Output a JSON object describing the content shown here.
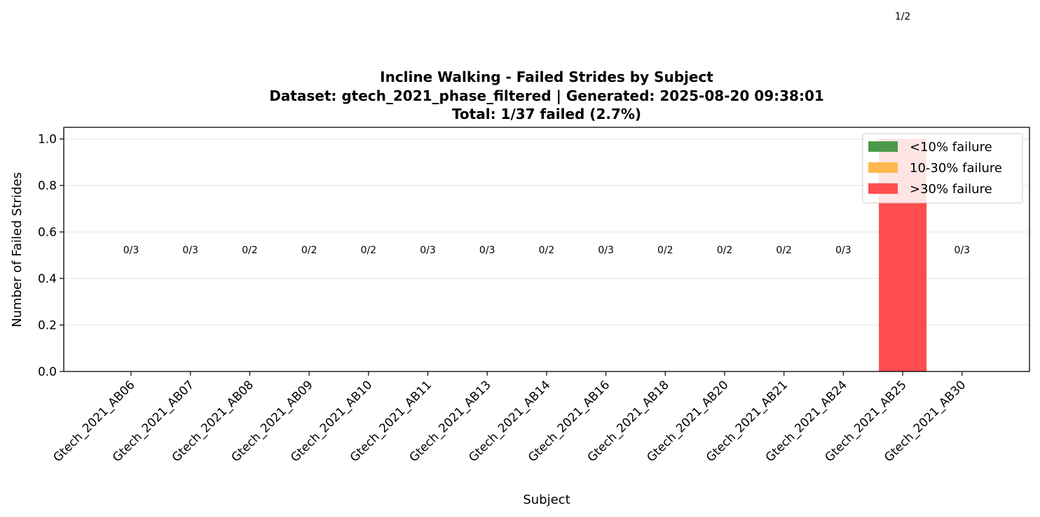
{
  "chart_data": {
    "type": "bar",
    "title": [
      "Incline Walking - Failed Strides by Subject",
      "Dataset: gtech_2021_phase_filtered | Generated: 2025-08-20 09:38:01",
      "Total: 1/37 failed (2.7%)"
    ],
    "xlabel": "Subject",
    "ylabel": "Number of Failed Strides",
    "ylim": [
      0,
      1.05
    ],
    "yticks": [
      "0.0",
      "0.2",
      "0.4",
      "0.6",
      "0.8",
      "1.0"
    ],
    "ytick_values": [
      0,
      0.2,
      0.4,
      0.6,
      0.8,
      1.0
    ],
    "grid": "y",
    "legend_position": "top-right",
    "categories": [
      "Gtech_2021_AB06",
      "Gtech_2021_AB07",
      "Gtech_2021_AB08",
      "Gtech_2021_AB09",
      "Gtech_2021_AB10",
      "Gtech_2021_AB11",
      "Gtech_2021_AB13",
      "Gtech_2021_AB14",
      "Gtech_2021_AB16",
      "Gtech_2021_AB18",
      "Gtech_2021_AB20",
      "Gtech_2021_AB21",
      "Gtech_2021_AB24",
      "Gtech_2021_AB25",
      "Gtech_2021_AB30"
    ],
    "values": [
      0,
      0,
      0,
      0,
      0,
      0,
      0,
      0,
      0,
      0,
      0,
      0,
      0,
      1,
      0
    ],
    "bar_labels": [
      "0/3",
      "0/3",
      "0/2",
      "0/2",
      "0/2",
      "0/3",
      "0/3",
      "0/2",
      "0/3",
      "0/2",
      "0/2",
      "0/2",
      "0/3",
      "1/2",
      "0/3"
    ],
    "bar_categories": [
      "low",
      "low",
      "low",
      "low",
      "low",
      "low",
      "low",
      "low",
      "low",
      "low",
      "low",
      "low",
      "low",
      "high",
      "low"
    ],
    "highlight_index": 13,
    "legend": [
      {
        "key": "low",
        "label": "<10% failure",
        "color": "#4a9a4a"
      },
      {
        "key": "mid",
        "label": "10-30% failure",
        "color": "#ffb84d"
      },
      {
        "key": "high",
        "label": ">30% failure",
        "color": "#ff4d4d"
      }
    ],
    "highlight_color": "#ffd8d8"
  }
}
